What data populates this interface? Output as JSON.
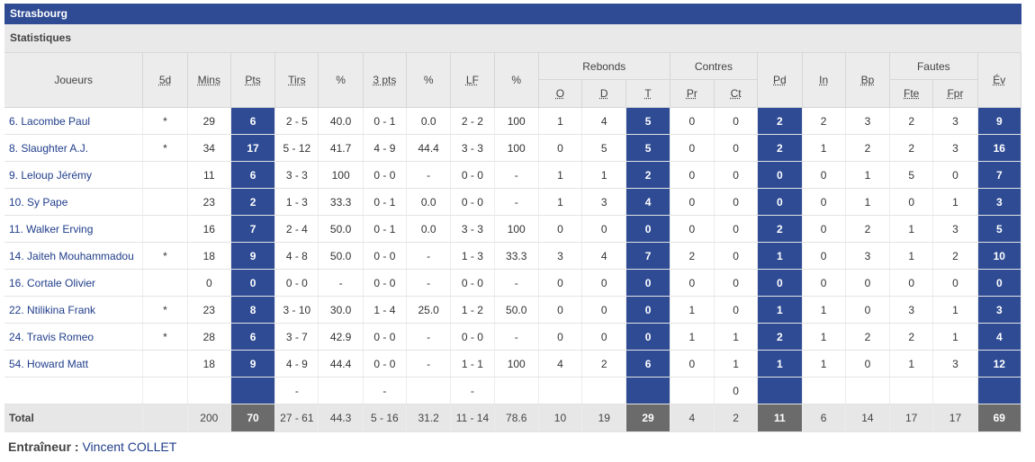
{
  "team": "Strasbourg",
  "section": "Statistiques",
  "headers": {
    "joueurs": "Joueurs",
    "5d": "5d",
    "mins": "Mins",
    "pts": "Pts",
    "tirs": "Tirs",
    "pct": "%",
    "3pts": "3 pts",
    "lf": "LF",
    "rebonds": "Rebonds",
    "o": "O",
    "d": "D",
    "t": "T",
    "contres": "Contres",
    "pr": "Pr",
    "ct": "Ct",
    "pd": "Pd",
    "in": "In",
    "bp": "Bp",
    "fautes": "Fautes",
    "fte": "Fte",
    "fpr": "Fpr",
    "ev": "Év"
  },
  "rows": [
    {
      "name": "6. Lacombe Paul",
      "s5": "*",
      "mins": "29",
      "pts": "6",
      "tirs": "2 - 5",
      "tp": "40.0",
      "tr": "0 - 1",
      "trp": "0.0",
      "lf": "2 - 2",
      "lfp": "100",
      "o": "1",
      "d": "4",
      "t": "5",
      "pr": "0",
      "ct": "0",
      "pd": "2",
      "in": "2",
      "bp": "3",
      "fte": "2",
      "fpr": "3",
      "ev": "9"
    },
    {
      "name": "8. Slaughter A.J.",
      "s5": "*",
      "mins": "34",
      "pts": "17",
      "tirs": "5 - 12",
      "tp": "41.7",
      "tr": "4 - 9",
      "trp": "44.4",
      "lf": "3 - 3",
      "lfp": "100",
      "o": "0",
      "d": "5",
      "t": "5",
      "pr": "0",
      "ct": "0",
      "pd": "2",
      "in": "1",
      "bp": "2",
      "fte": "2",
      "fpr": "3",
      "ev": "16"
    },
    {
      "name": "9. Leloup Jérémy",
      "s5": "",
      "mins": "11",
      "pts": "6",
      "tirs": "3 - 3",
      "tp": "100",
      "tr": "0 - 0",
      "trp": "-",
      "lf": "0 - 0",
      "lfp": "-",
      "o": "1",
      "d": "1",
      "t": "2",
      "pr": "0",
      "ct": "0",
      "pd": "0",
      "in": "0",
      "bp": "1",
      "fte": "5",
      "fpr": "0",
      "ev": "7"
    },
    {
      "name": "10. Sy Pape",
      "s5": "",
      "mins": "23",
      "pts": "2",
      "tirs": "1 - 3",
      "tp": "33.3",
      "tr": "0 - 1",
      "trp": "0.0",
      "lf": "0 - 0",
      "lfp": "-",
      "o": "1",
      "d": "3",
      "t": "4",
      "pr": "0",
      "ct": "0",
      "pd": "0",
      "in": "0",
      "bp": "1",
      "fte": "0",
      "fpr": "1",
      "ev": "3"
    },
    {
      "name": "11. Walker Erving",
      "s5": "",
      "mins": "16",
      "pts": "7",
      "tirs": "2 - 4",
      "tp": "50.0",
      "tr": "0 - 1",
      "trp": "0.0",
      "lf": "3 - 3",
      "lfp": "100",
      "o": "0",
      "d": "0",
      "t": "0",
      "pr": "0",
      "ct": "0",
      "pd": "2",
      "in": "0",
      "bp": "2",
      "fte": "1",
      "fpr": "3",
      "ev": "5"
    },
    {
      "name": "14. Jaiteh Mouhammadou",
      "s5": "*",
      "mins": "18",
      "pts": "9",
      "tirs": "4 - 8",
      "tp": "50.0",
      "tr": "0 - 0",
      "trp": "-",
      "lf": "1 - 3",
      "lfp": "33.3",
      "o": "3",
      "d": "4",
      "t": "7",
      "pr": "2",
      "ct": "0",
      "pd": "1",
      "in": "0",
      "bp": "3",
      "fte": "1",
      "fpr": "2",
      "ev": "10"
    },
    {
      "name": "16. Cortale Olivier",
      "s5": "",
      "mins": "0",
      "pts": "0",
      "tirs": "0 - 0",
      "tp": "-",
      "tr": "0 - 0",
      "trp": "-",
      "lf": "0 - 0",
      "lfp": "-",
      "o": "0",
      "d": "0",
      "t": "0",
      "pr": "0",
      "ct": "0",
      "pd": "0",
      "in": "0",
      "bp": "0",
      "fte": "0",
      "fpr": "0",
      "ev": "0"
    },
    {
      "name": "22. Ntilikina Frank",
      "s5": "*",
      "mins": "23",
      "pts": "8",
      "tirs": "3 - 10",
      "tp": "30.0",
      "tr": "1 - 4",
      "trp": "25.0",
      "lf": "1 - 2",
      "lfp": "50.0",
      "o": "0",
      "d": "0",
      "t": "0",
      "pr": "1",
      "ct": "0",
      "pd": "1",
      "in": "1",
      "bp": "0",
      "fte": "3",
      "fpr": "1",
      "ev": "3"
    },
    {
      "name": "24. Travis Romeo",
      "s5": "*",
      "mins": "28",
      "pts": "6",
      "tirs": "3 - 7",
      "tp": "42.9",
      "tr": "0 - 0",
      "trp": "-",
      "lf": "0 - 0",
      "lfp": "-",
      "o": "0",
      "d": "0",
      "t": "0",
      "pr": "1",
      "ct": "1",
      "pd": "2",
      "in": "1",
      "bp": "2",
      "fte": "2",
      "fpr": "1",
      "ev": "4"
    },
    {
      "name": "54. Howard Matt",
      "s5": "",
      "mins": "18",
      "pts": "9",
      "tirs": "4 - 9",
      "tp": "44.4",
      "tr": "0 - 0",
      "trp": "-",
      "lf": "1 - 1",
      "lfp": "100",
      "o": "4",
      "d": "2",
      "t": "6",
      "pr": "0",
      "ct": "1",
      "pd": "1",
      "in": "1",
      "bp": "0",
      "fte": "1",
      "fpr": "3",
      "ev": "12"
    }
  ],
  "team_row": {
    "tirs": "-",
    "tr": "-",
    "lf": "-",
    "ct": "0"
  },
  "total": {
    "label": "Total",
    "mins": "200",
    "pts": "70",
    "tirs": "27 - 61",
    "tp": "44.3",
    "tr": "5 - 16",
    "trp": "31.2",
    "lf": "11 - 14",
    "lfp": "78.6",
    "o": "10",
    "d": "19",
    "t": "29",
    "pr": "4",
    "ct": "2",
    "pd": "11",
    "in": "6",
    "bp": "14",
    "fte": "17",
    "fpr": "17",
    "ev": "69"
  },
  "coach": {
    "label": "Entraîneur :",
    "name": "Vincent COLLET"
  },
  "colors": {
    "header_blue": "#2e4b94",
    "total_grey": "#6b6b6b",
    "link": "#1f3d8a"
  }
}
